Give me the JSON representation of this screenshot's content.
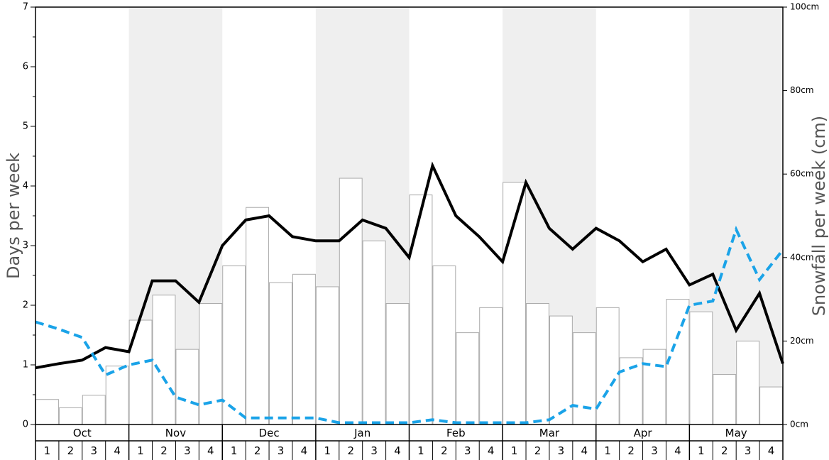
{
  "chart_data": {
    "type": "bar",
    "title": "",
    "ylabel_left": "Days per week",
    "ylabel_right": "Snowfall per week (cm)",
    "ylim_left": [
      0,
      7
    ],
    "ylim_right": [
      0,
      100
    ],
    "left_ticks": [
      "0",
      "1",
      "2",
      "3",
      "4",
      "5",
      "6",
      "7"
    ],
    "right_ticks": [
      "0cm",
      "20cm",
      "40cm",
      "60cm",
      "80cm",
      "100cm"
    ],
    "months": [
      "Oct",
      "Nov",
      "Dec",
      "Jan",
      "Feb",
      "Mar",
      "Apr",
      "May"
    ],
    "weeks": [
      "1",
      "2",
      "3",
      "4"
    ],
    "shaded_months": [
      "Nov",
      "Jan",
      "Mar",
      "May"
    ],
    "colors": {
      "line1": "#000000",
      "line2": "#1aa3e8",
      "bar_fill": "#ffffff",
      "bar_stroke": "#aaaaaa",
      "shade": "#efefef"
    },
    "series": [
      {
        "type": "bar",
        "axis": "right",
        "values": [
          6,
          4,
          7,
          14,
          25,
          31,
          18,
          29,
          38,
          52,
          34,
          36,
          33,
          59,
          44,
          29,
          55,
          38,
          22,
          28,
          58,
          29,
          26,
          22,
          28,
          16,
          18,
          30,
          27,
          12,
          20,
          9
        ]
      },
      {
        "type": "line",
        "style": "solid",
        "axis": "left",
        "values": [
          0.95,
          1.02,
          1.08,
          1.29,
          1.22,
          2.41,
          2.41,
          2.05,
          3.0,
          3.43,
          3.5,
          3.15,
          3.08,
          3.08,
          3.43,
          3.29,
          2.8,
          4.34,
          3.5,
          3.15,
          2.73,
          4.06,
          3.29,
          2.94,
          3.29,
          3.08,
          2.73,
          2.94,
          2.34,
          2.52,
          1.58,
          2.2,
          1.02
        ]
      },
      {
        "type": "line",
        "style": "dashed",
        "axis": "left",
        "values": [
          1.72,
          1.6,
          1.46,
          0.83,
          1.0,
          1.08,
          0.46,
          0.33,
          0.41,
          0.11,
          0.11,
          0.11,
          0.11,
          0.03,
          0.03,
          0.03,
          0.03,
          0.08,
          0.03,
          0.03,
          0.03,
          0.03,
          0.08,
          0.32,
          0.26,
          0.88,
          1.02,
          0.97,
          2.0,
          2.07,
          3.27,
          2.43,
          2.93
        ]
      }
    ]
  }
}
